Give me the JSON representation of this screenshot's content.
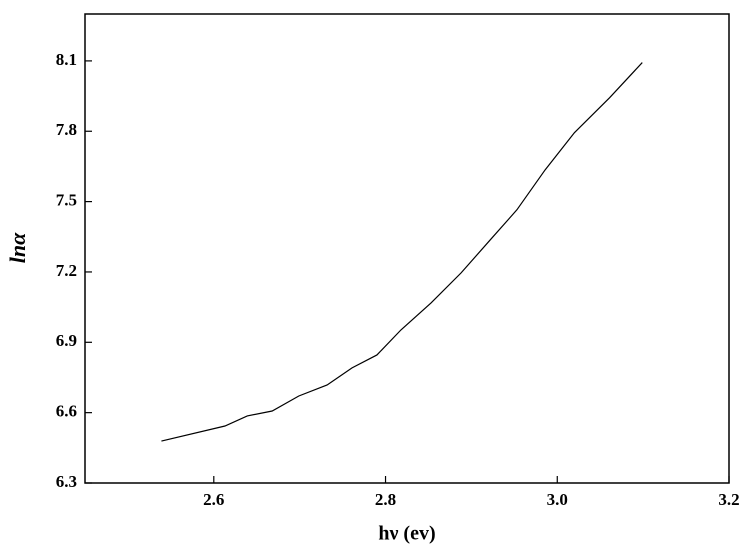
{
  "chart_data": {
    "type": "line",
    "x_label": "hν (ev)",
    "y_label": "lnα",
    "series": [
      {
        "color": "#000000",
        "x": [
          2.539,
          2.613,
          2.639,
          2.668,
          2.699,
          2.732,
          2.761,
          2.79,
          2.818,
          2.853,
          2.888,
          2.922,
          2.953,
          2.986,
          3.02,
          3.061,
          3.099
        ],
        "values": [
          6.479,
          6.543,
          6.586,
          6.607,
          6.671,
          6.718,
          6.791,
          6.846,
          6.953,
          7.068,
          7.196,
          7.337,
          7.465,
          7.636,
          7.794,
          7.943,
          8.093
        ]
      }
    ],
    "xlim": [
      2.45,
      3.2
    ],
    "xticks": [
      2.6,
      2.8,
      {
        "value": 3.0,
        "label": "3.0"
      },
      3.2
    ],
    "ylim": [
      6.3,
      8.3
    ],
    "yticks": [
      6.3,
      6.6,
      6.9,
      7.2,
      7.5,
      7.8,
      8.1
    ]
  }
}
